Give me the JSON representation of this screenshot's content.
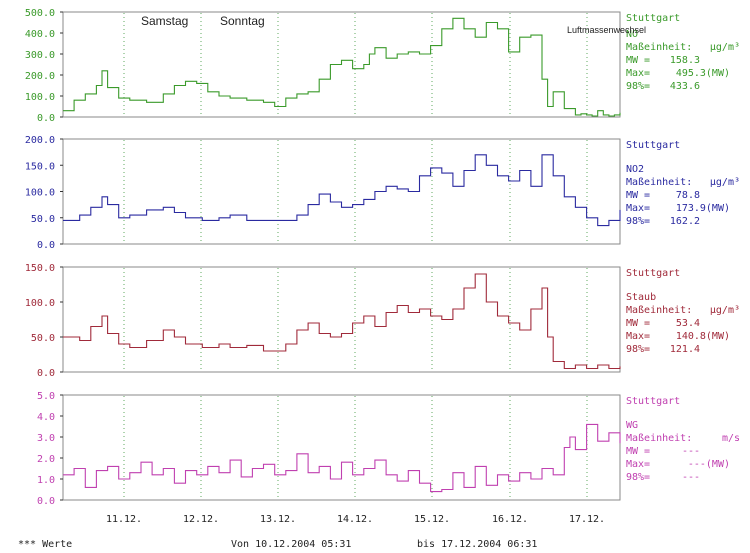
{
  "footer": {
    "left": "*** Werte",
    "from": "Von 10.12.2004 05:31",
    "to": "bis 17.12.2004 06:31"
  },
  "x_ticks": [
    "11.12.",
    "12.12.",
    "13.12.",
    "14.12.",
    "15.12.",
    "16.12.",
    "17.12."
  ],
  "annotations": {
    "samstag": "Samstag",
    "sonntag": "Sonntag",
    "luftmasse": "Luftmassenwechsel"
  },
  "chart_data": [
    {
      "type": "line",
      "color": "#3a9a2a",
      "ylim": [
        0,
        500
      ],
      "yticks": [
        "500.0",
        "400.0",
        "300.0",
        "200.0",
        "100.0",
        "0.0"
      ],
      "legend": {
        "location": "Stuttgart",
        "name": "NO",
        "unit_label": "Maßeinheit:",
        "unit": "µg/m³",
        "mw_label": "MW =",
        "mw": "158.3",
        "max_label": "Max=",
        "max": "495.3(MW)",
        "p98_label": "98%=",
        "p98": "433.6"
      },
      "x": [
        0,
        0.02,
        0.04,
        0.06,
        0.07,
        0.08,
        0.1,
        0.12,
        0.15,
        0.18,
        0.2,
        0.22,
        0.24,
        0.26,
        0.28,
        0.3,
        0.33,
        0.36,
        0.38,
        0.4,
        0.42,
        0.44,
        0.46,
        0.48,
        0.5,
        0.52,
        0.54,
        0.55,
        0.56,
        0.58,
        0.6,
        0.62,
        0.64,
        0.66,
        0.68,
        0.7,
        0.72,
        0.74,
        0.76,
        0.78,
        0.8,
        0.82,
        0.84,
        0.86,
        0.87,
        0.88,
        0.9,
        0.92,
        0.93,
        0.94,
        0.95,
        0.96,
        0.97,
        0.98,
        0.99,
        1.0
      ],
      "values": [
        30,
        80,
        110,
        150,
        220,
        140,
        90,
        80,
        70,
        110,
        150,
        170,
        160,
        120,
        100,
        90,
        80,
        70,
        50,
        90,
        110,
        120,
        180,
        250,
        270,
        230,
        250,
        300,
        330,
        280,
        300,
        310,
        300,
        340,
        420,
        470,
        420,
        380,
        450,
        420,
        310,
        380,
        390,
        180,
        50,
        120,
        40,
        10,
        15,
        10,
        5,
        30,
        10,
        5,
        10,
        20
      ]
    },
    {
      "type": "line",
      "color": "#2a2aa0",
      "ylim": [
        0,
        200
      ],
      "yticks": [
        "200.0",
        "150.0",
        "100.0",
        "50.0",
        "0.0"
      ],
      "legend": {
        "location": "Stuttgart",
        "name": "NO2",
        "unit_label": "Maßeinheit:",
        "unit": "µg/m³",
        "mw_label": "MW =",
        "mw": "78.8",
        "max_label": "Max=",
        "max": "173.9(MW)",
        "p98_label": "98%=",
        "p98": "162.2"
      },
      "x": [
        0,
        0.03,
        0.05,
        0.07,
        0.08,
        0.1,
        0.12,
        0.15,
        0.18,
        0.2,
        0.22,
        0.25,
        0.28,
        0.3,
        0.33,
        0.36,
        0.4,
        0.42,
        0.44,
        0.46,
        0.48,
        0.5,
        0.52,
        0.54,
        0.56,
        0.58,
        0.6,
        0.62,
        0.64,
        0.66,
        0.68,
        0.7,
        0.72,
        0.74,
        0.76,
        0.78,
        0.8,
        0.82,
        0.84,
        0.86,
        0.88,
        0.9,
        0.92,
        0.94,
        0.96,
        0.98,
        1.0
      ],
      "values": [
        45,
        55,
        70,
        90,
        75,
        50,
        55,
        65,
        70,
        60,
        50,
        45,
        50,
        55,
        45,
        45,
        45,
        55,
        75,
        95,
        80,
        70,
        75,
        85,
        100,
        110,
        105,
        100,
        130,
        145,
        135,
        110,
        140,
        170,
        150,
        130,
        120,
        140,
        110,
        170,
        130,
        90,
        70,
        50,
        35,
        45,
        65
      ]
    },
    {
      "type": "line",
      "color": "#a02a3a",
      "ylim": [
        0,
        150
      ],
      "yticks": [
        "150.0",
        "100.0",
        "50.0",
        "0.0"
      ],
      "legend": {
        "location": "Stuttgart",
        "name": "Staub",
        "unit_label": "Maßeinheit:",
        "unit": "µg/m³",
        "mw_label": "MW =",
        "mw": "53.4",
        "max_label": "Max=",
        "max": "140.8(MW)",
        "p98_label": "98%=",
        "p98": "121.4"
      },
      "x": [
        0,
        0.03,
        0.05,
        0.07,
        0.08,
        0.1,
        0.12,
        0.15,
        0.18,
        0.2,
        0.22,
        0.25,
        0.28,
        0.3,
        0.33,
        0.36,
        0.4,
        0.42,
        0.44,
        0.46,
        0.48,
        0.5,
        0.52,
        0.54,
        0.56,
        0.58,
        0.6,
        0.62,
        0.64,
        0.66,
        0.68,
        0.7,
        0.72,
        0.74,
        0.76,
        0.78,
        0.8,
        0.82,
        0.84,
        0.86,
        0.87,
        0.88,
        0.9,
        0.92,
        0.94,
        0.96,
        0.98,
        1.0
      ],
      "values": [
        50,
        45,
        65,
        80,
        55,
        40,
        35,
        45,
        60,
        50,
        40,
        35,
        40,
        35,
        38,
        30,
        40,
        60,
        70,
        55,
        50,
        55,
        70,
        80,
        65,
        85,
        95,
        85,
        90,
        80,
        75,
        90,
        120,
        140,
        100,
        80,
        70,
        60,
        90,
        120,
        50,
        15,
        5,
        10,
        5,
        10,
        5,
        8
      ]
    },
    {
      "type": "line",
      "color": "#c040b0",
      "ylim": [
        0,
        5
      ],
      "yticks": [
        "5.0",
        "4.0",
        "3.0",
        "2.0",
        "1.0",
        "0.0"
      ],
      "legend": {
        "location": "Stuttgart",
        "name": "WG",
        "unit_label": "Maßeinheit:",
        "unit": "m/s",
        "mw_label": "MW =",
        "mw": "---",
        "max_label": "Max=",
        "max": "---(MW)",
        "p98_label": "98%=",
        "p98": "---"
      },
      "x": [
        0,
        0.02,
        0.04,
        0.06,
        0.08,
        0.1,
        0.12,
        0.14,
        0.16,
        0.18,
        0.2,
        0.22,
        0.24,
        0.26,
        0.28,
        0.3,
        0.32,
        0.34,
        0.36,
        0.38,
        0.4,
        0.42,
        0.44,
        0.46,
        0.48,
        0.5,
        0.52,
        0.54,
        0.56,
        0.58,
        0.6,
        0.62,
        0.64,
        0.66,
        0.68,
        0.7,
        0.72,
        0.74,
        0.76,
        0.78,
        0.8,
        0.82,
        0.84,
        0.86,
        0.88,
        0.9,
        0.91,
        0.92,
        0.94,
        0.96,
        0.98,
        1.0
      ],
      "values": [
        1.2,
        1.5,
        0.6,
        1.4,
        1.6,
        1.0,
        1.3,
        1.8,
        1.2,
        1.5,
        0.8,
        1.4,
        1.2,
        1.6,
        1.3,
        1.9,
        1.1,
        1.5,
        1.7,
        1.2,
        1.4,
        2.2,
        1.3,
        1.6,
        1.0,
        1.8,
        1.2,
        1.5,
        1.9,
        1.2,
        0.9,
        1.4,
        0.8,
        0.4,
        0.5,
        1.3,
        0.6,
        1.6,
        0.7,
        1.2,
        0.9,
        1.3,
        1.0,
        1.5,
        1.2,
        2.5,
        3.0,
        2.4,
        3.6,
        2.8,
        3.2,
        2.7
      ]
    }
  ]
}
